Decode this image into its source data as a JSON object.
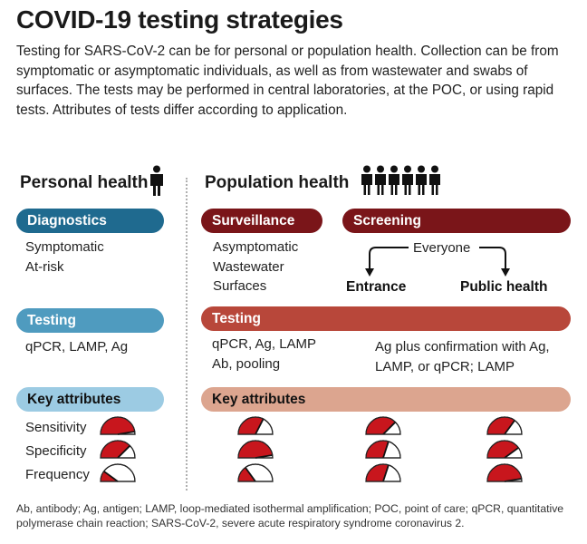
{
  "title": "COVID-19 testing strategies",
  "intro": "Testing for SARS-CoV-2 can be for personal or population health. Collection can be from symptomatic or asymptomatic individuals, as well as from wastewater and swabs of surfaces. The tests may be performed in central laboratories, at the POC, or using rapid tests. Attributes of tests differ according to application.",
  "personal": {
    "heading": "Personal health",
    "diagnostics": {
      "label": "Diagnostics",
      "items": [
        "Symptomatic",
        "At-risk"
      ]
    },
    "testing": {
      "label": "Testing",
      "methods": "qPCR, LAMP, Ag"
    },
    "attributes": {
      "label": "Key attributes",
      "rows": [
        "Sensitivity",
        "Specificity",
        "Frequency"
      ],
      "levels": [
        0.95,
        0.75,
        0.2
      ]
    }
  },
  "population": {
    "heading": "Population health",
    "surveillance": {
      "label": "Surveillance",
      "items": [
        "Asymptomatic",
        "Wastewater",
        "Surfaces"
      ]
    },
    "screening": {
      "label": "Screening",
      "everyone": "Everyone",
      "entrance": "Entrance",
      "public_health": "Public health"
    },
    "testing": {
      "label": "Testing",
      "surveillance_methods": [
        "qPCR, Ag, LAMP",
        "Ab, pooling"
      ],
      "screening_methods": [
        "Ag plus confirmation with Ag,",
        "LAMP, or qPCR; LAMP"
      ]
    },
    "attributes": {
      "label": "Key attributes",
      "columns": [
        {
          "levels": [
            0.65,
            0.95,
            0.3
          ]
        },
        {
          "levels": [
            0.75,
            0.6,
            0.6
          ]
        },
        {
          "levels": [
            0.7,
            0.8,
            0.95
          ]
        }
      ]
    }
  },
  "footnote": "Ab, antibody; Ag, antigen; LAMP, loop-mediated isothermal amplification; POC, point of care; qPCR, quantitative polymerase chain reaction; SARS-CoV-2, severe acute respiratory syndrome coronavirus 2.",
  "colors": {
    "personal_dark": "#1f6a8f",
    "personal_mid": "#4f9bbf",
    "personal_light": "#9ccbe3",
    "population_dark": "#7a1519",
    "population_mid": "#b8473a",
    "population_light": "#dca58f",
    "gauge_fill": "#c8161d"
  }
}
